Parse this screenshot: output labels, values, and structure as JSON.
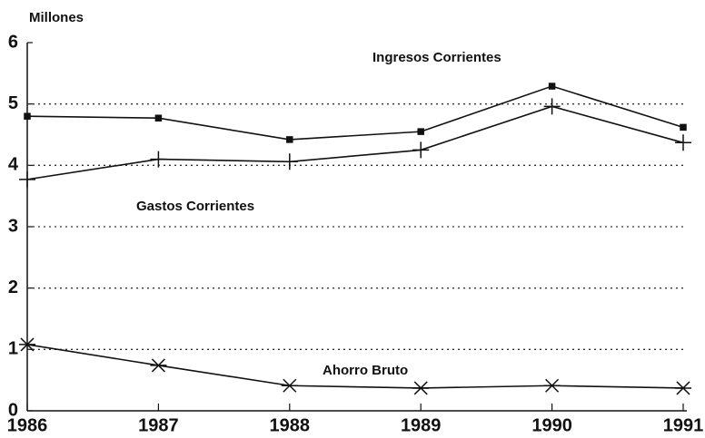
{
  "chart_data": {
    "type": "line",
    "y_label": "Millones",
    "x": [
      1986,
      1987,
      1988,
      1989,
      1990,
      1991
    ],
    "series": [
      {
        "name": "Ingresos Corrientes",
        "color": "#111111",
        "marker": "square",
        "values": [
          4.8,
          4.77,
          4.42,
          4.55,
          5.29,
          4.62
        ]
      },
      {
        "name": "Gastos Corrientes",
        "color": "#111111",
        "marker": "plus",
        "values": [
          3.77,
          4.1,
          4.06,
          4.25,
          4.96,
          4.37
        ]
      },
      {
        "name": "Ahorro Bruto",
        "color": "#111111",
        "marker": "asterisk",
        "values": [
          1.08,
          0.74,
          0.41,
          0.37,
          0.41,
          0.37
        ]
      }
    ],
    "xlim": [
      1986,
      1991
    ],
    "xticks": [
      1986,
      1987,
      1988,
      1989,
      1990,
      1991
    ],
    "ylim": [
      0,
      6
    ],
    "yticks": [
      0,
      1,
      2,
      3,
      4,
      5,
      6
    ],
    "grid": true
  }
}
